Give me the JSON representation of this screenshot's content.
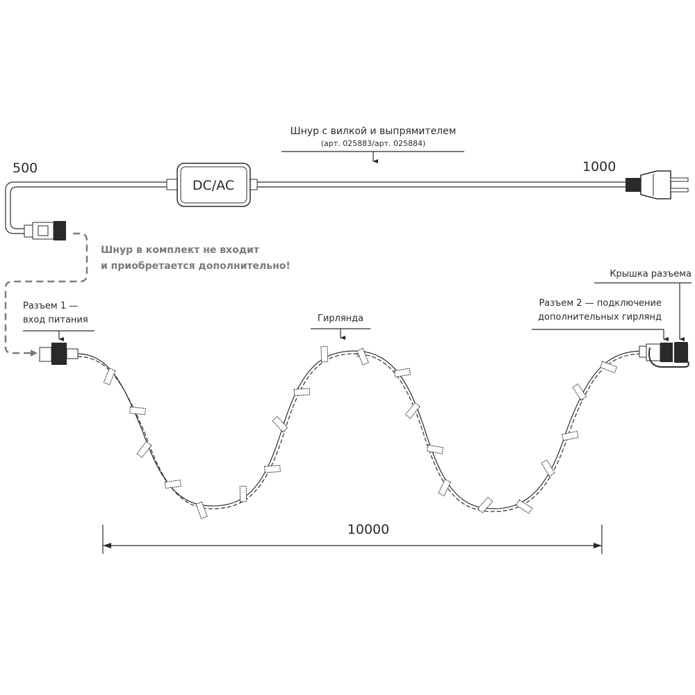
{
  "cord": {
    "title": "Шнур с вилкой и выпрямителем",
    "article": "(арт. 025883/арт. 025884)",
    "box_label": "DC/AC",
    "length_left": "500",
    "length_right": "1000"
  },
  "note": {
    "line1": "Шнур в комплект не входит",
    "line2": "и приобретается дополнительно!"
  },
  "connector1": {
    "line1": "Разъем 1 —",
    "line2": "вход питания"
  },
  "garland_label": "Гирлянда",
  "connector2": {
    "line1": "Разъем 2 — подключение",
    "line2": "дополнительных гирлянд"
  },
  "cap_label": "Крышка разъема",
  "dimension": "10000",
  "colors": {
    "line": "#2a2a2a",
    "dashed": "#7a7a7a"
  }
}
